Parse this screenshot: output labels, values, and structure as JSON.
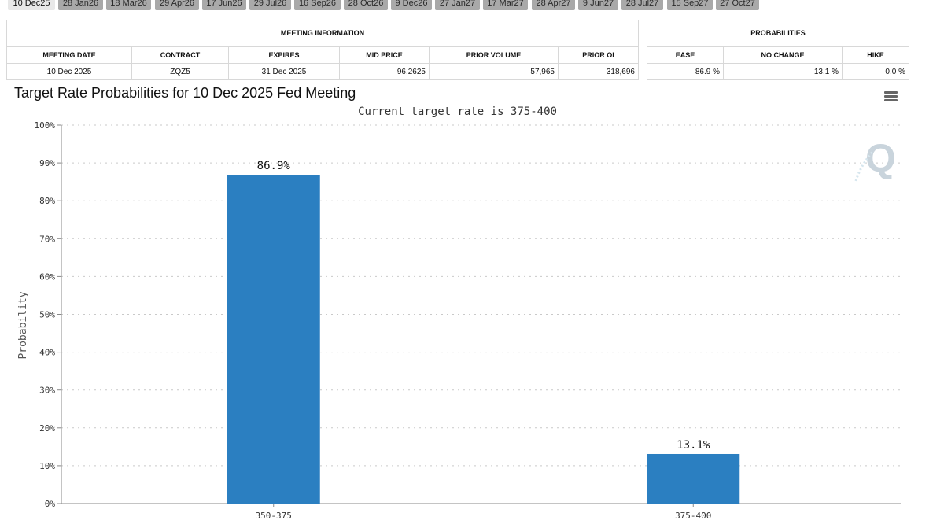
{
  "tabs": [
    {
      "label": "10 Dec25",
      "active": true
    },
    {
      "label": "28 Jan26"
    },
    {
      "label": "18 Mar26"
    },
    {
      "label": "29 Apr26"
    },
    {
      "label": "17 Jun26"
    },
    {
      "label": "29 Jul26"
    },
    {
      "label": "16 Sep26"
    },
    {
      "label": "28 Oct26"
    },
    {
      "label": "9 Dec26"
    },
    {
      "label": "27 Jan27"
    },
    {
      "label": "17 Mar27"
    },
    {
      "label": "28 Apr27"
    },
    {
      "label": "9 Jun27"
    },
    {
      "label": "28 Jul27"
    },
    {
      "label": "15 Sep27"
    },
    {
      "label": "27 Oct27"
    }
  ],
  "meeting_info": {
    "title": "MEETING INFORMATION",
    "headers": [
      "MEETING DATE",
      "CONTRACT",
      "EXPIRES",
      "MID PRICE",
      "PRIOR VOLUME",
      "PRIOR OI"
    ],
    "values": [
      "10 Dec 2025",
      "ZQZ5",
      "31 Dec 2025",
      "96.2625",
      "57,965",
      "318,696"
    ]
  },
  "probabilities": {
    "title": "PROBABILITIES",
    "headers": [
      "EASE",
      "NO CHANGE",
      "HIKE"
    ],
    "values": [
      "86.9 %",
      "13.1 %",
      "0.0 %"
    ]
  },
  "menu_icon": "hamburger-menu-icon",
  "watermark_glyph": "Q",
  "chart_data": {
    "type": "bar",
    "title": "Target Rate Probabilities for 10 Dec 2025 Fed Meeting",
    "subtitle": "Current target rate is 375-400",
    "categories": [
      "350-375",
      "375-400"
    ],
    "values": [
      86.9,
      13.1
    ],
    "data_labels": [
      "86.9%",
      "13.1%"
    ],
    "xlabel": "",
    "ylabel": "Probability",
    "ylim": [
      0,
      100
    ],
    "yticks": [
      "0%",
      "10%",
      "20%",
      "30%",
      "40%",
      "50%",
      "60%",
      "70%",
      "80%",
      "90%",
      "100%"
    ],
    "grid": true,
    "bar_color": "#2b7fc1",
    "grid_color": "#c9c9c9"
  }
}
